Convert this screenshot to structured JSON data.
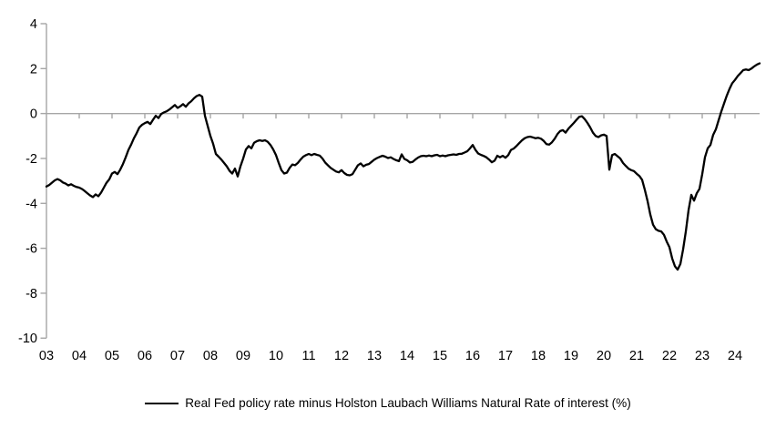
{
  "chart_data": {
    "type": "line",
    "title": "",
    "xlabel": "",
    "ylabel": "",
    "ylim": [
      -10,
      4
    ],
    "y_ticks": [
      4,
      2,
      0,
      -2,
      -4,
      -6,
      -8,
      -10
    ],
    "y_tick_labels": [
      "4",
      "2",
      "0",
      "-2",
      "-4",
      "-6",
      "-8",
      "-10"
    ],
    "x_tick_labels": [
      "03",
      "04",
      "05",
      "06",
      "07",
      "08",
      "09",
      "10",
      "11",
      "12",
      "13",
      "14",
      "15",
      "16",
      "17",
      "18",
      "19",
      "20",
      "21",
      "22",
      "23",
      "24"
    ],
    "x_range_years": [
      2003.0,
      2024.75
    ],
    "grid": "zero-line-only",
    "legend_position": "bottom-center",
    "axis_color": "#a6a6a6",
    "series": [
      {
        "name": "Real Fed policy rate minus Holston Laubach Williams Natural Rate of interest (%)",
        "color": "#000000",
        "frequency": "monthly",
        "start_year": 2003,
        "start_month": 1,
        "values": [
          -3.25,
          -3.18,
          -3.08,
          -2.98,
          -2.92,
          -2.97,
          -3.07,
          -3.12,
          -3.2,
          -3.15,
          -3.22,
          -3.27,
          -3.3,
          -3.36,
          -3.45,
          -3.55,
          -3.65,
          -3.72,
          -3.6,
          -3.68,
          -3.52,
          -3.3,
          -3.08,
          -2.93,
          -2.67,
          -2.6,
          -2.7,
          -2.5,
          -2.25,
          -1.95,
          -1.62,
          -1.38,
          -1.1,
          -0.88,
          -0.62,
          -0.5,
          -0.43,
          -0.37,
          -0.47,
          -0.28,
          -0.1,
          -0.2,
          -0.02,
          0.05,
          0.1,
          0.18,
          0.28,
          0.38,
          0.25,
          0.32,
          0.42,
          0.3,
          0.45,
          0.55,
          0.68,
          0.78,
          0.83,
          0.75,
          -0.1,
          -0.55,
          -1.0,
          -1.35,
          -1.8,
          -1.92,
          -2.05,
          -2.2,
          -2.35,
          -2.55,
          -2.67,
          -2.45,
          -2.8,
          -2.35,
          -2.0,
          -1.6,
          -1.45,
          -1.55,
          -1.3,
          -1.23,
          -1.19,
          -1.22,
          -1.19,
          -1.26,
          -1.4,
          -1.6,
          -1.85,
          -2.2,
          -2.52,
          -2.67,
          -2.63,
          -2.42,
          -2.27,
          -2.3,
          -2.2,
          -2.05,
          -1.92,
          -1.85,
          -1.8,
          -1.85,
          -1.8,
          -1.84,
          -1.87,
          -2.0,
          -2.18,
          -2.3,
          -2.42,
          -2.5,
          -2.58,
          -2.62,
          -2.52,
          -2.65,
          -2.73,
          -2.75,
          -2.7,
          -2.5,
          -2.3,
          -2.22,
          -2.35,
          -2.28,
          -2.25,
          -2.15,
          -2.05,
          -1.98,
          -1.93,
          -1.88,
          -1.92,
          -1.98,
          -1.95,
          -2.02,
          -2.08,
          -2.12,
          -1.82,
          -2.02,
          -2.08,
          -2.18,
          -2.15,
          -2.05,
          -1.96,
          -1.9,
          -1.88,
          -1.9,
          -1.87,
          -1.9,
          -1.86,
          -1.84,
          -1.9,
          -1.87,
          -1.9,
          -1.86,
          -1.84,
          -1.82,
          -1.84,
          -1.8,
          -1.79,
          -1.74,
          -1.68,
          -1.55,
          -1.4,
          -1.62,
          -1.78,
          -1.84,
          -1.89,
          -1.95,
          -2.05,
          -2.17,
          -2.1,
          -1.88,
          -1.95,
          -1.88,
          -1.97,
          -1.85,
          -1.62,
          -1.56,
          -1.45,
          -1.32,
          -1.2,
          -1.1,
          -1.05,
          -1.03,
          -1.06,
          -1.1,
          -1.08,
          -1.12,
          -1.22,
          -1.36,
          -1.38,
          -1.28,
          -1.12,
          -0.92,
          -0.78,
          -0.74,
          -0.85,
          -0.68,
          -0.55,
          -0.42,
          -0.28,
          -0.15,
          -0.12,
          -0.25,
          -0.42,
          -0.62,
          -0.85,
          -1.0,
          -1.05,
          -0.97,
          -0.94,
          -1.0,
          -2.5,
          -1.85,
          -1.8,
          -1.9,
          -2.0,
          -2.2,
          -2.33,
          -2.45,
          -2.52,
          -2.56,
          -2.68,
          -2.78,
          -2.95,
          -3.4,
          -3.9,
          -4.5,
          -4.95,
          -5.15,
          -5.22,
          -5.25,
          -5.4,
          -5.7,
          -5.95,
          -6.45,
          -6.8,
          -6.95,
          -6.7,
          -6.05,
          -5.25,
          -4.3,
          -3.62,
          -3.88,
          -3.55,
          -3.35,
          -2.7,
          -1.95,
          -1.55,
          -1.4,
          -0.95,
          -0.7,
          -0.3,
          0.1,
          0.45,
          0.8,
          1.1,
          1.35,
          1.5,
          1.67,
          1.8,
          1.93,
          1.96,
          1.93,
          2.0,
          2.1,
          2.18,
          2.23
        ]
      }
    ]
  },
  "legend": {
    "label": "Real Fed policy rate minus Holston Laubach Williams Natural Rate of interest (%)"
  }
}
